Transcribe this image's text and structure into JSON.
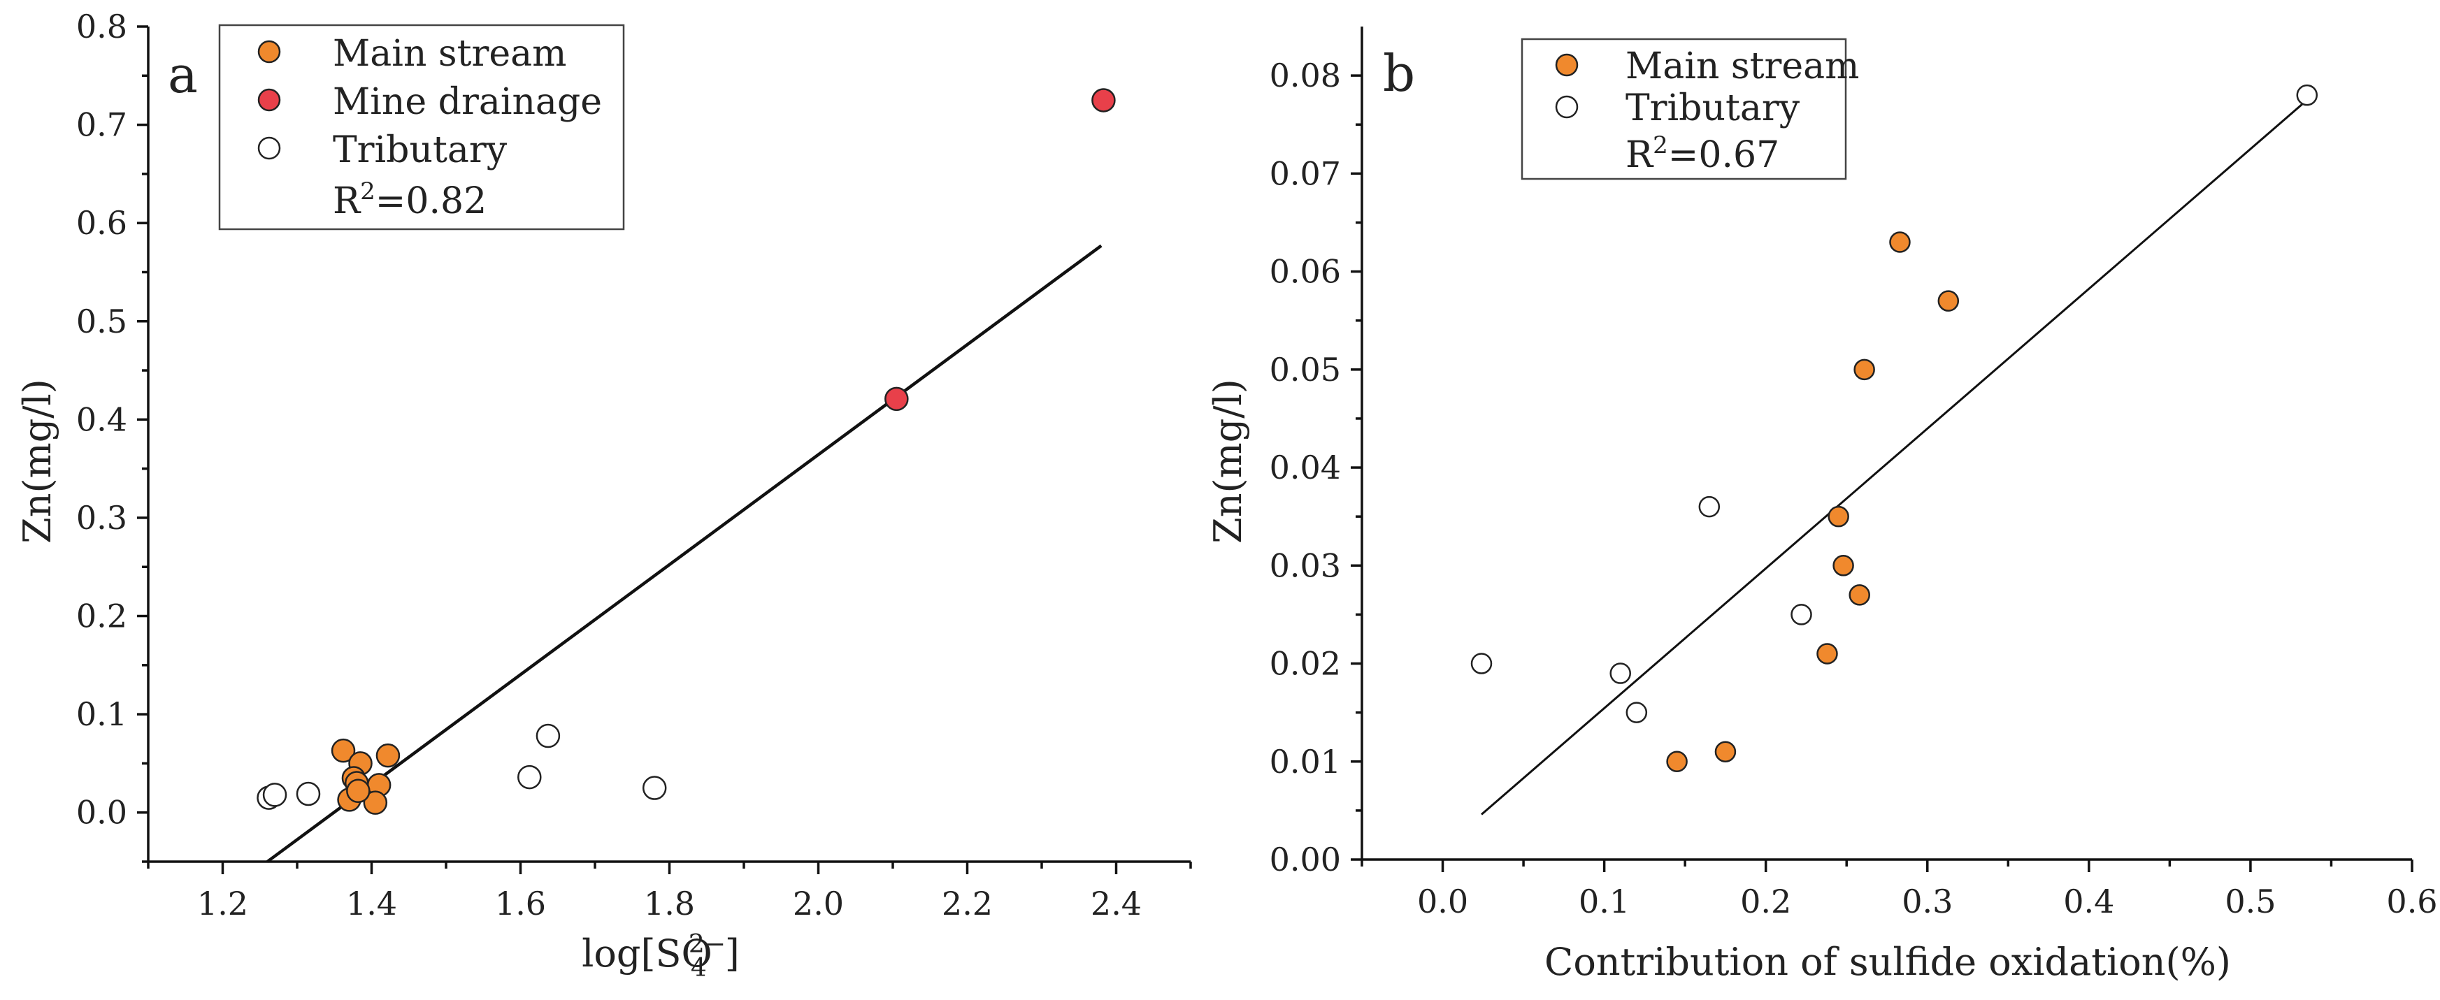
{
  "chart_data": [
    {
      "panel": "a",
      "type": "scatter",
      "xlabel": "log[SO",
      "xlabel_sub": "4",
      "xlabel_sup": "2−",
      "xlabel_end": "]",
      "ylabel": "Zn(mg/l)",
      "xlim": [
        1.1,
        2.5
      ],
      "ylim": [
        -0.05,
        0.8
      ],
      "xticks": [
        1.2,
        1.4,
        1.6,
        1.8,
        2.0,
        2.2,
        2.4
      ],
      "xtick_labels": [
        "1.2",
        "1.4",
        "1.6",
        "1.8",
        "2.0",
        "2.2",
        "2.4"
      ],
      "yticks": [
        0.0,
        0.1,
        0.2,
        0.3,
        0.4,
        0.5,
        0.6,
        0.7,
        0.8
      ],
      "ytick_labels": [
        "0.0",
        "0.1",
        "0.2",
        "0.3",
        "0.4",
        "0.5",
        "0.6",
        "0.7",
        "0.8"
      ],
      "series": [
        {
          "name": "Main stream",
          "color": "#f0892d",
          "points": [
            [
              1.362,
              0.063
            ],
            [
              1.385,
              0.05
            ],
            [
              1.422,
              0.058
            ],
            [
              1.376,
              0.035
            ],
            [
              1.38,
              0.03
            ],
            [
              1.41,
              0.028
            ],
            [
              1.37,
              0.013
            ],
            [
              1.405,
              0.01
            ],
            [
              1.382,
              0.022
            ]
          ]
        },
        {
          "name": "Mine drainage",
          "color": "#e8404a",
          "points": [
            [
              2.105,
              0.421
            ],
            [
              2.383,
              0.725
            ]
          ]
        },
        {
          "name": "Tributary",
          "color": "#ffffff",
          "points": [
            [
              1.262,
              0.015
            ],
            [
              1.27,
              0.018
            ],
            [
              1.315,
              0.019
            ],
            [
              1.612,
              0.036
            ],
            [
              1.637,
              0.078
            ],
            [
              1.78,
              0.025
            ]
          ]
        }
      ],
      "fit": {
        "x": [
          1.26,
          2.38
        ],
        "y": [
          -0.05,
          0.577
        ]
      },
      "r2_prefix": "R",
      "r2_sup": "2",
      "r2_value": "=0.82",
      "panel_letter": "a"
    },
    {
      "panel": "b",
      "type": "scatter",
      "xlabel": "Contribution of sulfide oxidation(%)",
      "ylabel": "Zn(mg/l)",
      "xlim": [
        -0.05,
        0.6
      ],
      "ylim": [
        0.0,
        0.085
      ],
      "xticks": [
        0.0,
        0.1,
        0.2,
        0.3,
        0.4,
        0.5,
        0.6
      ],
      "xtick_labels": [
        "0.0",
        "0.1",
        "0.2",
        "0.3",
        "0.4",
        "0.5",
        "0.6"
      ],
      "yticks": [
        0.0,
        0.01,
        0.02,
        0.03,
        0.04,
        0.05,
        0.06,
        0.07,
        0.08
      ],
      "ytick_labels": [
        "0.00",
        "0.01",
        "0.02",
        "0.03",
        "0.04",
        "0.05",
        "0.06",
        "0.07",
        "0.08"
      ],
      "series": [
        {
          "name": "Main stream",
          "color": "#f0892d",
          "points": [
            [
              0.145,
              0.01
            ],
            [
              0.175,
              0.011
            ],
            [
              0.238,
              0.021
            ],
            [
              0.245,
              0.035
            ],
            [
              0.248,
              0.03
            ],
            [
              0.258,
              0.027
            ],
            [
              0.261,
              0.05
            ],
            [
              0.283,
              0.063
            ],
            [
              0.313,
              0.057
            ]
          ]
        },
        {
          "name": "Tributary",
          "color": "#ffffff",
          "points": [
            [
              0.024,
              0.02
            ],
            [
              0.11,
              0.019
            ],
            [
              0.12,
              0.015
            ],
            [
              0.165,
              0.036
            ],
            [
              0.222,
              0.025
            ],
            [
              0.535,
              0.078
            ]
          ]
        }
      ],
      "fit": {
        "x": [
          0.024,
          0.535
        ],
        "y": [
          0.0046,
          0.0775
        ]
      },
      "r2_prefix": "R",
      "r2_sup": "2",
      "r2_value": "=0.67",
      "panel_letter": "b"
    }
  ]
}
